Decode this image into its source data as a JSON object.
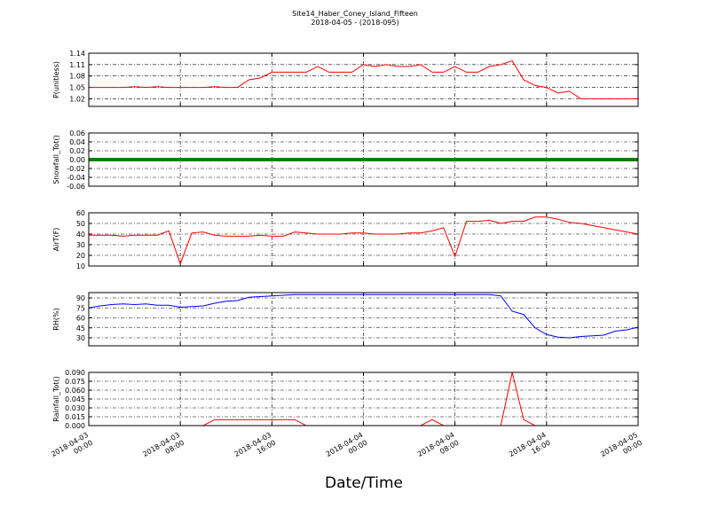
{
  "title": "Site14_Haber_Coney_Island_Fifteen",
  "subtitle": "2018-04-05 - (2018-095)",
  "xlabel": "Date/Time",
  "chart_data": [
    {
      "type": "line",
      "ylabel": "P(unitless)",
      "color": "#ff0000",
      "ylim": [
        1.0,
        1.14
      ],
      "yticks": [
        1.02,
        1.05,
        1.08,
        1.11,
        1.14
      ],
      "xlim": [
        0,
        48
      ],
      "grid": true,
      "x": [
        0,
        1,
        2,
        3,
        4,
        5,
        6,
        7,
        8,
        9,
        10,
        11,
        12,
        13,
        14,
        15,
        16,
        17,
        18,
        19,
        20,
        21,
        22,
        23,
        24,
        25,
        26,
        27,
        28,
        29,
        30,
        31,
        32,
        33,
        34,
        35,
        36,
        37,
        38,
        39,
        40,
        41,
        42,
        43,
        44,
        45,
        46,
        47,
        48
      ],
      "values": [
        1.05,
        1.05,
        1.05,
        1.05,
        1.052,
        1.05,
        1.052,
        1.05,
        1.05,
        1.05,
        1.05,
        1.052,
        1.05,
        1.05,
        1.07,
        1.075,
        1.09,
        1.09,
        1.09,
        1.09,
        1.105,
        1.09,
        1.09,
        1.09,
        1.11,
        1.105,
        1.11,
        1.105,
        1.105,
        1.11,
        1.09,
        1.09,
        1.105,
        1.09,
        1.09,
        1.105,
        1.11,
        1.12,
        1.07,
        1.055,
        1.05,
        1.035,
        1.04,
        1.02,
        1.02,
        1.02,
        1.02,
        1.02,
        1.02
      ]
    },
    {
      "type": "line",
      "ylabel": "Snowfall_Tot()",
      "color": "#008000",
      "ylim": [
        -0.06,
        0.06
      ],
      "yticks": [
        -0.06,
        -0.04,
        -0.02,
        {
          "value": 0,
          "label": "0.00"
        },
        0.02,
        0.04,
        0.06
      ],
      "xlim": [
        0,
        48
      ],
      "grid": true,
      "x": [
        0,
        1,
        2,
        3,
        4,
        5,
        6,
        7,
        8,
        9,
        10,
        11,
        12,
        13,
        14,
        15,
        16,
        17,
        18,
        19,
        20,
        21,
        22,
        23,
        24,
        25,
        26,
        27,
        28,
        29,
        30,
        31,
        32,
        33,
        34,
        35,
        36,
        37,
        38,
        39,
        40,
        41,
        42,
        43,
        44,
        45,
        46,
        47,
        48
      ],
      "values": [
        0,
        0,
        0,
        0,
        0,
        0,
        0,
        0,
        0,
        0,
        0,
        0,
        0,
        0,
        0,
        0,
        0,
        0,
        0,
        0,
        0,
        0,
        0,
        0,
        0,
        0,
        0,
        0,
        0,
        0,
        0,
        0,
        0,
        0,
        0,
        0,
        0,
        0,
        0,
        0,
        0,
        0,
        0,
        0,
        0,
        0,
        0,
        0,
        0
      ]
    },
    {
      "type": "line",
      "ylabel": "AirT(F)",
      "color": "#ff0000",
      "ylim": [
        10,
        60
      ],
      "yticks": [
        10,
        20,
        30,
        40,
        50,
        60
      ],
      "xlim": [
        0,
        48
      ],
      "grid": true,
      "x": [
        0,
        1,
        2,
        3,
        4,
        5,
        6,
        7,
        8,
        9,
        10,
        11,
        12,
        13,
        14,
        15,
        16,
        17,
        18,
        19,
        20,
        21,
        22,
        23,
        24,
        25,
        26,
        27,
        28,
        29,
        30,
        31,
        32,
        33,
        34,
        35,
        36,
        37,
        38,
        39,
        40,
        41,
        42,
        43,
        44,
        45,
        46,
        47,
        48
      ],
      "values": [
        39,
        39,
        39,
        38,
        39,
        39,
        39,
        43,
        12,
        41,
        42,
        39,
        38,
        38,
        38,
        39,
        38,
        38,
        42,
        41,
        40,
        40,
        40,
        41,
        41,
        40,
        40,
        40,
        41,
        41,
        43,
        46,
        19,
        52,
        52,
        53,
        50,
        52,
        52,
        56,
        56,
        54,
        51,
        50,
        48,
        46,
        44,
        42,
        40
      ]
    },
    {
      "type": "line",
      "ylabel": "RH(%)",
      "color": "#0000ff",
      "ylim": [
        18,
        98
      ],
      "yticks": [
        30,
        45,
        60,
        75,
        90
      ],
      "xlim": [
        0,
        48
      ],
      "grid": true,
      "x": [
        0,
        1,
        2,
        3,
        4,
        5,
        6,
        7,
        8,
        9,
        10,
        11,
        12,
        13,
        14,
        15,
        16,
        17,
        18,
        19,
        20,
        21,
        22,
        23,
        24,
        25,
        26,
        27,
        28,
        29,
        30,
        31,
        32,
        33,
        34,
        35,
        36,
        37,
        38,
        39,
        40,
        41,
        42,
        43,
        44,
        45,
        46,
        47,
        48
      ],
      "values": [
        75,
        78,
        80,
        81,
        80,
        81,
        79,
        79,
        76,
        77,
        78,
        82,
        85,
        86,
        91,
        92,
        93,
        94,
        95,
        95,
        95,
        95,
        95,
        95,
        95,
        95,
        95,
        95,
        95,
        95,
        95,
        95,
        95,
        95,
        95,
        95,
        93,
        70,
        65,
        45,
        35,
        31,
        30,
        32,
        33,
        34,
        40,
        42,
        46
      ]
    },
    {
      "type": "line",
      "ylabel": "Rainfall_Tot()",
      "color": "#ff0000",
      "ylim": [
        0,
        0.09
      ],
      "yticks": [
        {
          "value": 0,
          "label": "0.000"
        },
        {
          "value": 0.015,
          "label": "0.015"
        },
        {
          "value": 0.03,
          "label": "0.030"
        },
        {
          "value": 0.045,
          "label": "0.045"
        },
        {
          "value": 0.06,
          "label": "0.060"
        },
        {
          "value": 0.075,
          "label": "0.075"
        },
        {
          "value": 0.09,
          "label": "0.090"
        }
      ],
      "xlim": [
        0,
        48
      ],
      "grid": true,
      "xticks": [
        {
          "value": 0,
          "label": "2018-04-03 00:00"
        },
        {
          "value": 8,
          "label": "2018-04-03 08:00"
        },
        {
          "value": 16,
          "label": "2018-04-03 16:00"
        },
        {
          "value": 24,
          "label": "2018-04-04 00:00"
        },
        {
          "value": 32,
          "label": "2018-04-04 08:00"
        },
        {
          "value": 40,
          "label": "2018-04-04 16:00"
        },
        {
          "value": 48,
          "label": "2018-04-05 00:00"
        }
      ],
      "x": [
        0,
        1,
        2,
        3,
        4,
        5,
        6,
        7,
        8,
        9,
        10,
        11,
        12,
        13,
        14,
        15,
        16,
        17,
        18,
        19,
        20,
        21,
        22,
        23,
        24,
        25,
        26,
        27,
        28,
        29,
        30,
        31,
        32,
        33,
        34,
        35,
        36,
        37,
        38,
        39,
        40,
        41,
        42,
        43,
        44,
        45,
        46,
        47,
        48
      ],
      "values": [
        0,
        0,
        0,
        0,
        0,
        0,
        0,
        0,
        0,
        0,
        0,
        0.01,
        0.01,
        0.01,
        0.01,
        0.01,
        0.01,
        0.01,
        0.01,
        0,
        0,
        0,
        0,
        0,
        0,
        0,
        0,
        0,
        0,
        0,
        0.01,
        0,
        0,
        0,
        0,
        0,
        0,
        0.09,
        0.01,
        0,
        0,
        0,
        0,
        0,
        0,
        0,
        0,
        0,
        0
      ]
    }
  ]
}
